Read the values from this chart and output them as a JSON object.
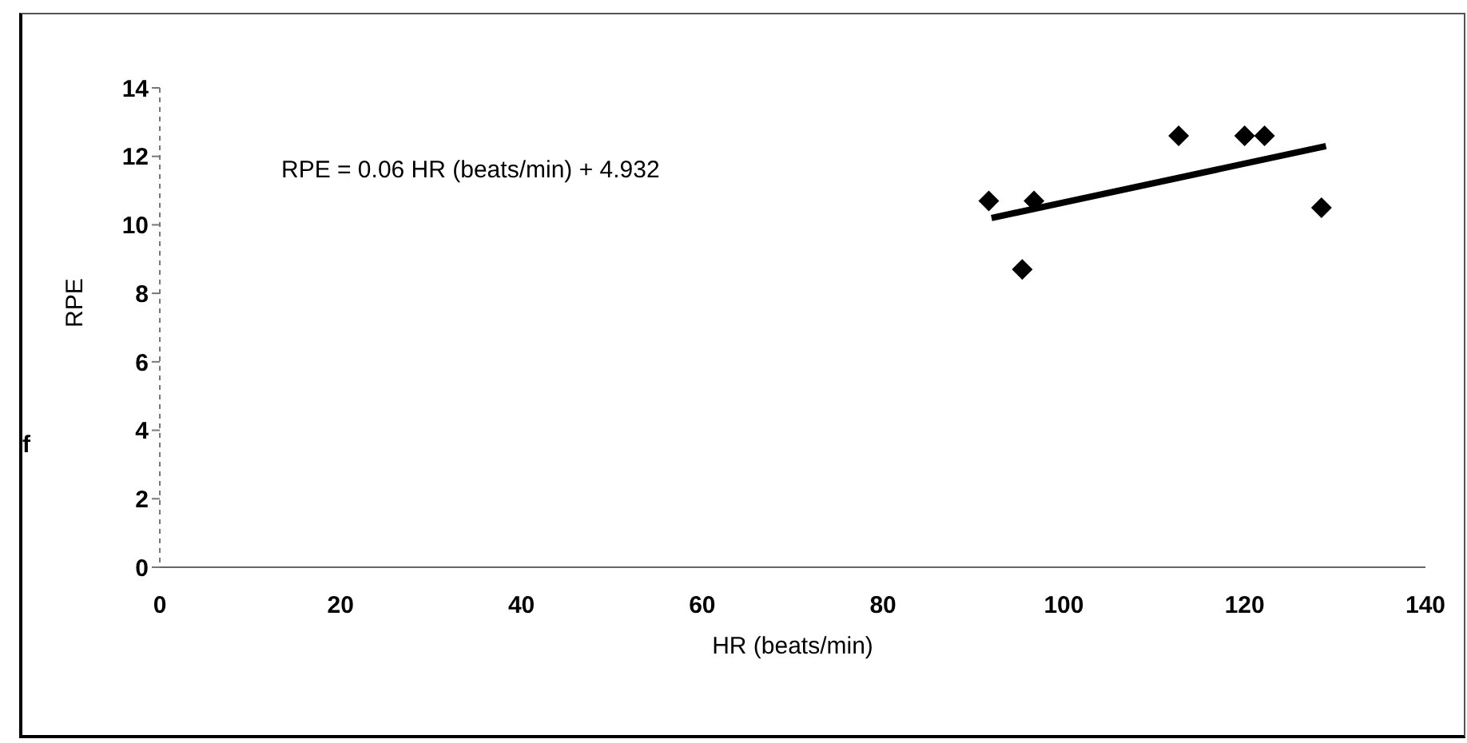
{
  "chart_data": {
    "type": "scatter",
    "xlabel": "HR (beats/min)",
    "ylabel": "RPE",
    "annotations": [
      "RPE = 0.06 HR (beats/min) + 4.932",
      "f"
    ],
    "series": [
      {
        "color": "#000000",
        "marker": "diamond",
        "x": [
          91.7,
          96.7,
          95.4,
          112.7,
          120,
          122.2,
          128.5
        ],
        "values": [
          10.7,
          10.7,
          8.7,
          12.6,
          12.6,
          12.6,
          10.5
        ]
      },
      {
        "type": "line",
        "color": "#000000",
        "marker": "none",
        "line_style": "solid",
        "x": [
          92,
          129
        ],
        "values": [
          10.2,
          12.3
        ]
      }
    ],
    "xlim": [
      0,
      140
    ],
    "xticks": [
      0,
      20,
      40,
      60,
      80,
      100,
      120,
      140
    ],
    "ylim": [
      0,
      14
    ],
    "yticks": [
      0,
      2,
      4,
      6,
      8,
      10,
      12,
      14
    ],
    "grid": false,
    "legend": false
  }
}
